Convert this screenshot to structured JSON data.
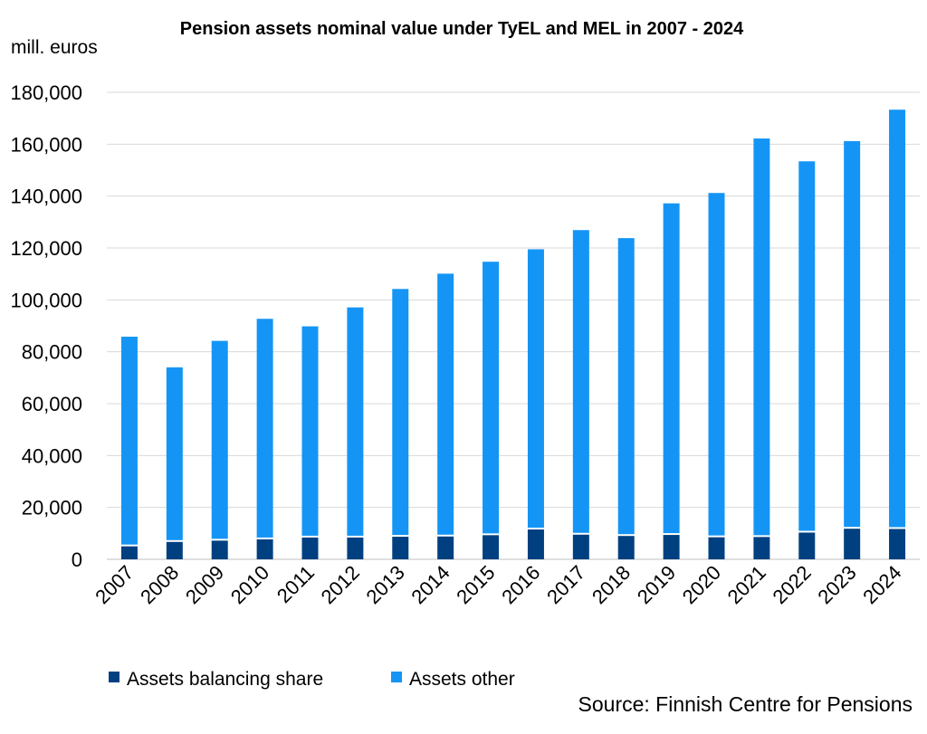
{
  "chart_data": {
    "type": "bar",
    "stacked": true,
    "title": "Pension assets nominal value under TyEL and MEL in 2007 - 2024",
    "ylabel": "mill. euros",
    "xlabel": "",
    "ylim": [
      0,
      180000
    ],
    "yticks": [
      "0",
      "20,000",
      "40,000",
      "60,000",
      "80,000",
      "100,000",
      "120,000",
      "140,000",
      "160,000",
      "180,000"
    ],
    "grid": true,
    "legend_position": "bottom-left",
    "categories": [
      "2007",
      "2008",
      "2009",
      "2010",
      "2011",
      "2012",
      "2013",
      "2014",
      "2015",
      "2016",
      "2017",
      "2018",
      "2019",
      "2020",
      "2021",
      "2022",
      "2023",
      "2024"
    ],
    "series": [
      {
        "name": "Assets balancing share",
        "color": "#004080",
        "values": [
          5000,
          6700,
          7200,
          7700,
          8400,
          8400,
          8700,
          8800,
          9300,
          11500,
          9500,
          9000,
          9400,
          8500,
          8600,
          10300,
          11800,
          11700
        ]
      },
      {
        "name": "Assets other",
        "color": "#1495f5",
        "values": [
          80800,
          67300,
          77000,
          85000,
          81400,
          88700,
          95500,
          101300,
          105400,
          108000,
          117400,
          114800,
          127800,
          132700,
          153600,
          143100,
          149400,
          161600
        ]
      }
    ]
  },
  "source": "Source: Finnish Centre for Pensions"
}
